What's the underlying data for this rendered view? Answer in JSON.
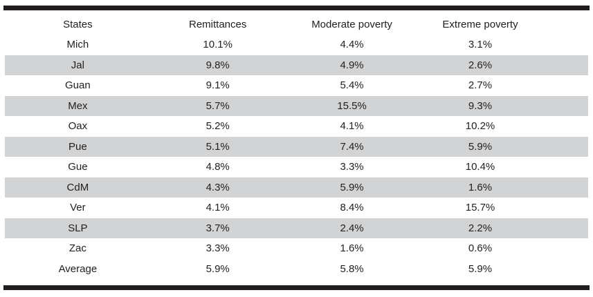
{
  "colors": {
    "rule": "#211d1e",
    "row_shade": "#d2d3d4",
    "text": "#242021",
    "background": "#ffffff"
  },
  "table": {
    "columns": [
      "States",
      "Remittances",
      "Moderate poverty",
      "Extreme poverty"
    ],
    "rows": [
      {
        "cells": [
          "Mich",
          "10.1%",
          "4.4%",
          "3.1%"
        ]
      },
      {
        "cells": [
          "Jal",
          "9.8%",
          "4.9%",
          "2.6%"
        ]
      },
      {
        "cells": [
          "Guan",
          "9.1%",
          "5.4%",
          "2.7%"
        ]
      },
      {
        "cells": [
          "Mex",
          "5.7%",
          "15.5%",
          "9.3%"
        ]
      },
      {
        "cells": [
          "Oax",
          "5.2%",
          "4.1%",
          "10.2%"
        ]
      },
      {
        "cells": [
          "Pue",
          "5.1%",
          "7.4%",
          "5.9%"
        ]
      },
      {
        "cells": [
          "Gue",
          "4.8%",
          "3.3%",
          "10.4%"
        ]
      },
      {
        "cells": [
          "CdM",
          "4.3%",
          "5.9%",
          "1.6%"
        ]
      },
      {
        "cells": [
          "Ver",
          "4.1%",
          "8.4%",
          "15.7%"
        ]
      },
      {
        "cells": [
          "SLP",
          "3.7%",
          "2.4%",
          "2.2%"
        ]
      },
      {
        "cells": [
          "Zac",
          "3.3%",
          "1.6%",
          "0.6%"
        ]
      },
      {
        "cells": [
          "Average",
          "5.9%",
          "5.8%",
          "5.9%"
        ]
      }
    ]
  }
}
